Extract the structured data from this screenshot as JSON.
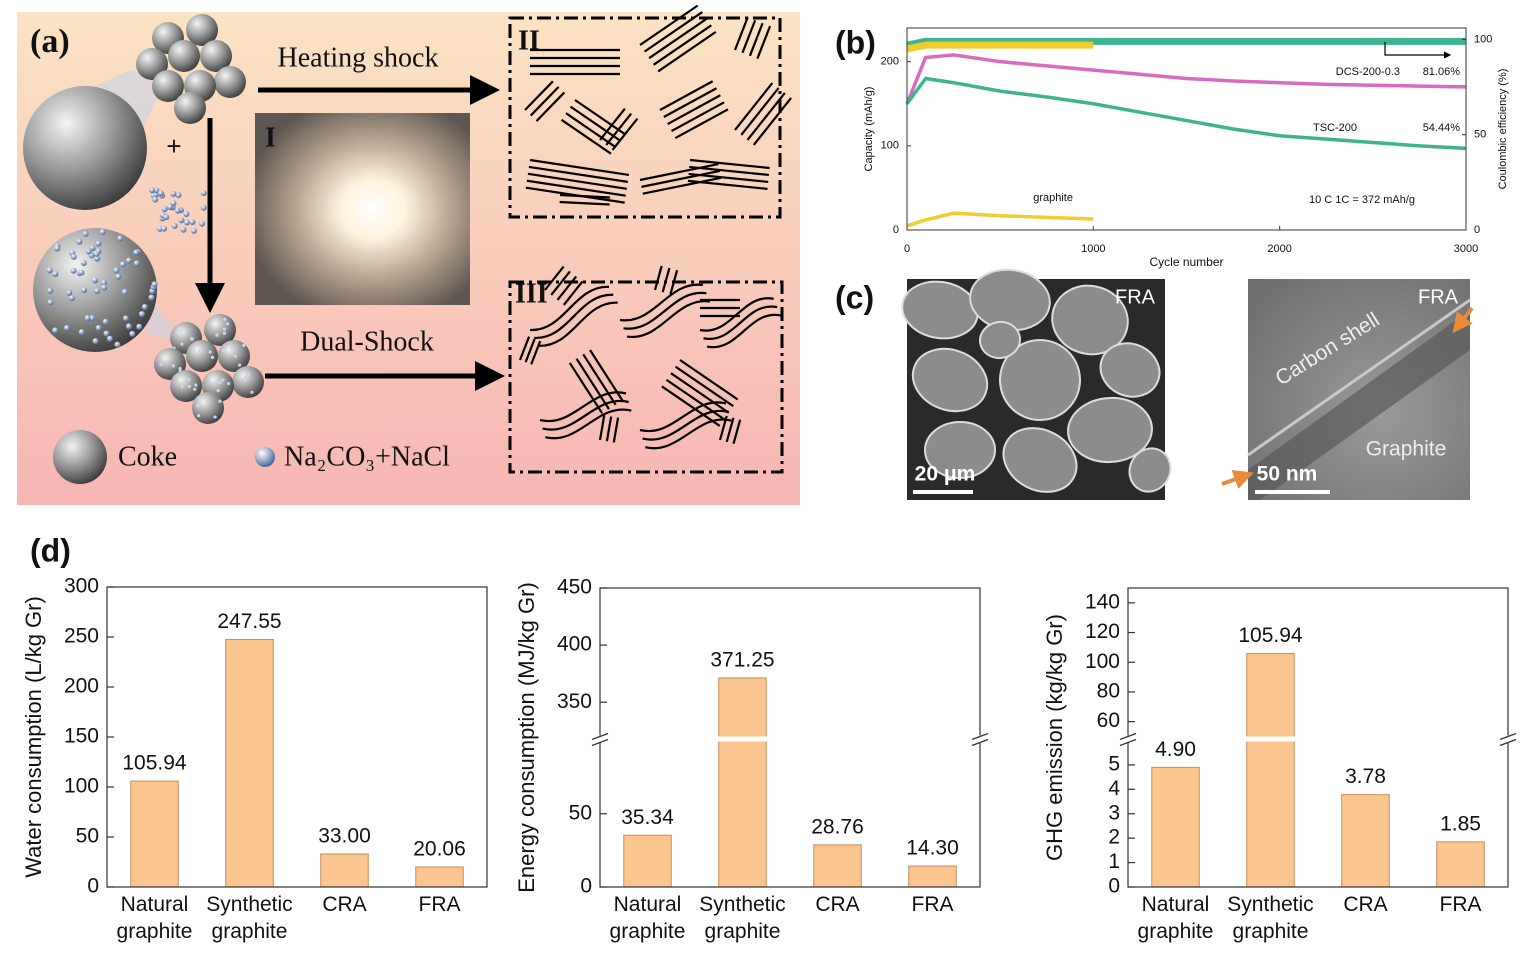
{
  "panel_a": {
    "label": "(a)",
    "heating": "Heating shock",
    "dual": "Dual-Shock",
    "stage_labels": [
      "I",
      "II",
      "III"
    ],
    "legend": [
      "Coke",
      "Na₂CO₃+NaCl"
    ]
  },
  "panel_b": {
    "label": "(b)"
  },
  "panel_c": {
    "label": "(c)",
    "images": [
      {
        "tag": "FRA",
        "scale": "20 μm"
      },
      {
        "tag": "FRA",
        "scale": "50 nm",
        "labels": [
          "Carbon shell",
          "Graphite"
        ]
      }
    ]
  },
  "panel_d": {
    "label": "(d)"
  },
  "chart_data": [
    {
      "type": "line",
      "x": [
        0,
        100,
        250,
        500,
        750,
        1000,
        1250,
        1500,
        1750,
        2000,
        2250,
        2500,
        2750,
        3000
      ],
      "xlim": [
        0,
        3000
      ],
      "xticks": [
        0,
        1000,
        2000,
        3000
      ],
      "ylim": [
        0,
        240
      ],
      "yticks": [
        0,
        100,
        200
      ],
      "y2lim": [
        0,
        106
      ],
      "y2ticks": [
        0,
        50,
        100
      ],
      "x_label": "Cycle number",
      "y_label": "Capacity (mAh/g)",
      "y2_label": "Coulombic efficiency (%)",
      "series": [
        {
          "name": "DCS-200-0.3",
          "color": "#d86bc0",
          "values": [
            150,
            205,
            208,
            200,
            195,
            190,
            185,
            180,
            177,
            175,
            173,
            172,
            171,
            170
          ]
        },
        {
          "name": "TSC-200",
          "color": "#3db38e",
          "values": [
            150,
            180,
            175,
            165,
            158,
            150,
            140,
            130,
            120,
            112,
            108,
            104,
            100,
            97
          ]
        },
        {
          "name": "graphite",
          "color": "#f0cc2e",
          "values": [
            5,
            12,
            20,
            17,
            15,
            13,
            null,
            null,
            null,
            null,
            null,
            null,
            null,
            null
          ]
        },
        {
          "color": "#3db38e",
          "axis": "y2",
          "values": [
            97,
            99,
            99,
            99,
            99,
            99,
            99,
            99,
            99,
            99,
            99,
            99,
            99,
            99
          ]
        },
        {
          "color": "#f0cc2e",
          "axis": "y2",
          "values": [
            95,
            97,
            97,
            97,
            97,
            97,
            null,
            null,
            null,
            null,
            null,
            null,
            null,
            null
          ]
        }
      ],
      "annotations": [
        "81.06%",
        "54.44%",
        "10 C  1C = 372 mAh/g"
      ]
    },
    {
      "type": "bar",
      "y_label": "Water consumption (L/kg Gr)",
      "categories": [
        "Natural graphite",
        "Synthetic graphite",
        "CRA",
        "FRA"
      ],
      "values": [
        105.94,
        247.55,
        33.0,
        20.06
      ],
      "value_labels": [
        "105.94",
        "247.55",
        "33.00",
        "20.06"
      ],
      "color": "#fbc590",
      "ylim": [
        0,
        300
      ],
      "yticks": [
        0,
        50,
        100,
        150,
        200,
        250,
        300
      ]
    },
    {
      "type": "bar",
      "y_label": "Energy consumption (MJ/kg Gr)",
      "categories": [
        "Natural graphite",
        "Synthetic graphite",
        "CRA",
        "FRA"
      ],
      "values": [
        35.34,
        371.25,
        28.76,
        14.3
      ],
      "value_labels": [
        "35.34",
        "371.25",
        "28.76",
        "14.30"
      ],
      "color": "#fbc590",
      "ylim": [
        0,
        450
      ],
      "ybreak": [
        100,
        320
      ],
      "yticks": [
        0,
        50,
        350,
        400,
        450
      ]
    },
    {
      "type": "bar",
      "y_label": "GHG emission (kg/kg Gr)",
      "categories": [
        "Natural graphite",
        "Synthetic graphite",
        "CRA",
        "FRA"
      ],
      "values": [
        4.9,
        105.94,
        3.78,
        1.85
      ],
      "value_labels": [
        "4.90",
        "105.94",
        "3.78",
        "1.85"
      ],
      "color": "#fbc590",
      "ylim": [
        0,
        150
      ],
      "ybreak": [
        6,
        50
      ],
      "yticks": [
        0,
        1,
        2,
        3,
        4,
        5,
        60,
        80,
        100,
        120,
        140
      ]
    }
  ]
}
